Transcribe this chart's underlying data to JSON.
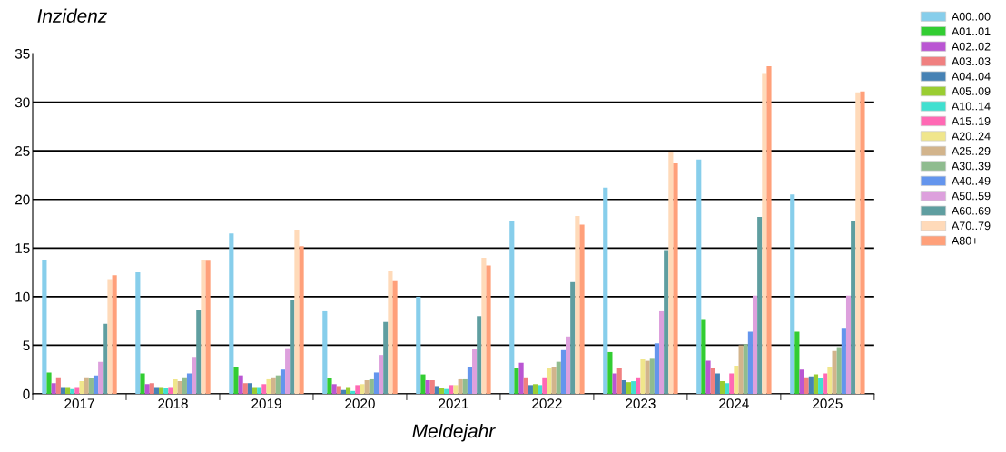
{
  "chart_data": {
    "type": "bar",
    "xlabel": "Meldejahr",
    "ylabel": "Inzidenz",
    "categories": [
      "2017",
      "2018",
      "2019",
      "2020",
      "2021",
      "2022",
      "2023",
      "2024",
      "2025"
    ],
    "series": [
      {
        "name": "A00..00",
        "color": "#87ceeb",
        "values": [
          13.8,
          12.5,
          16.5,
          8.5,
          10.0,
          17.8,
          21.2,
          24.1,
          20.5
        ]
      },
      {
        "name": "A01..01",
        "color": "#32cd32",
        "values": [
          2.2,
          2.1,
          2.8,
          1.6,
          2.0,
          2.7,
          4.3,
          7.6,
          6.4
        ]
      },
      {
        "name": "A02..02",
        "color": "#ba55d3",
        "values": [
          1.1,
          1.0,
          1.9,
          1.0,
          1.4,
          3.2,
          2.1,
          3.4,
          2.5
        ]
      },
      {
        "name": "A03..03",
        "color": "#f08080",
        "values": [
          1.7,
          1.1,
          1.1,
          0.8,
          1.4,
          1.7,
          2.7,
          2.7,
          1.7
        ]
      },
      {
        "name": "A04..04",
        "color": "#4682b4",
        "values": [
          0.7,
          0.7,
          1.1,
          0.4,
          0.8,
          0.9,
          1.4,
          2.1,
          1.8
        ]
      },
      {
        "name": "A05..09",
        "color": "#9acd32",
        "values": [
          0.7,
          0.7,
          0.7,
          0.7,
          0.6,
          1.0,
          1.2,
          1.3,
          2.0
        ]
      },
      {
        "name": "A10..14",
        "color": "#40e0d0",
        "values": [
          0.5,
          0.6,
          0.7,
          0.3,
          0.5,
          0.9,
          1.3,
          1.1,
          1.6
        ]
      },
      {
        "name": "A15..19",
        "color": "#ff69b4",
        "values": [
          0.7,
          0.7,
          1.0,
          0.9,
          0.9,
          1.7,
          1.7,
          2.1,
          2.1
        ]
      },
      {
        "name": "A20..24",
        "color": "#f0e68c",
        "values": [
          1.3,
          1.5,
          1.5,
          1.0,
          0.9,
          2.7,
          3.6,
          2.9,
          2.8
        ]
      },
      {
        "name": "A25..29",
        "color": "#d2b48c",
        "values": [
          1.7,
          1.3,
          1.7,
          1.4,
          1.5,
          2.8,
          3.4,
          5.0,
          4.4
        ]
      },
      {
        "name": "A30..39",
        "color": "#8fbc8f",
        "values": [
          1.6,
          1.7,
          1.9,
          1.5,
          1.5,
          3.3,
          3.7,
          5.1,
          4.8
        ]
      },
      {
        "name": "A40..49",
        "color": "#6495ed",
        "values": [
          1.9,
          2.1,
          2.5,
          2.2,
          2.8,
          4.5,
          5.2,
          6.4,
          6.8
        ]
      },
      {
        "name": "A50..59",
        "color": "#dda0dd",
        "values": [
          3.3,
          3.8,
          4.7,
          4.0,
          4.6,
          5.9,
          8.5,
          10.1,
          10.1
        ]
      },
      {
        "name": "A60..69",
        "color": "#5f9ea0",
        "values": [
          7.2,
          8.6,
          9.7,
          7.4,
          8.0,
          11.5,
          14.8,
          18.2,
          17.8
        ]
      },
      {
        "name": "A70..79",
        "color": "#ffdab9",
        "values": [
          11.8,
          13.8,
          16.9,
          12.6,
          14.0,
          18.3,
          24.9,
          33.0,
          31.0
        ]
      },
      {
        "name": "A80+",
        "color": "#ffa07a",
        "values": [
          12.2,
          13.7,
          15.2,
          11.6,
          13.2,
          17.4,
          23.7,
          33.7,
          31.1
        ]
      }
    ],
    "ylim": [
      0,
      35
    ],
    "yticks": [
      0,
      5,
      10,
      15,
      20,
      25,
      30,
      35
    ],
    "grid": "y",
    "legend": "top right"
  }
}
